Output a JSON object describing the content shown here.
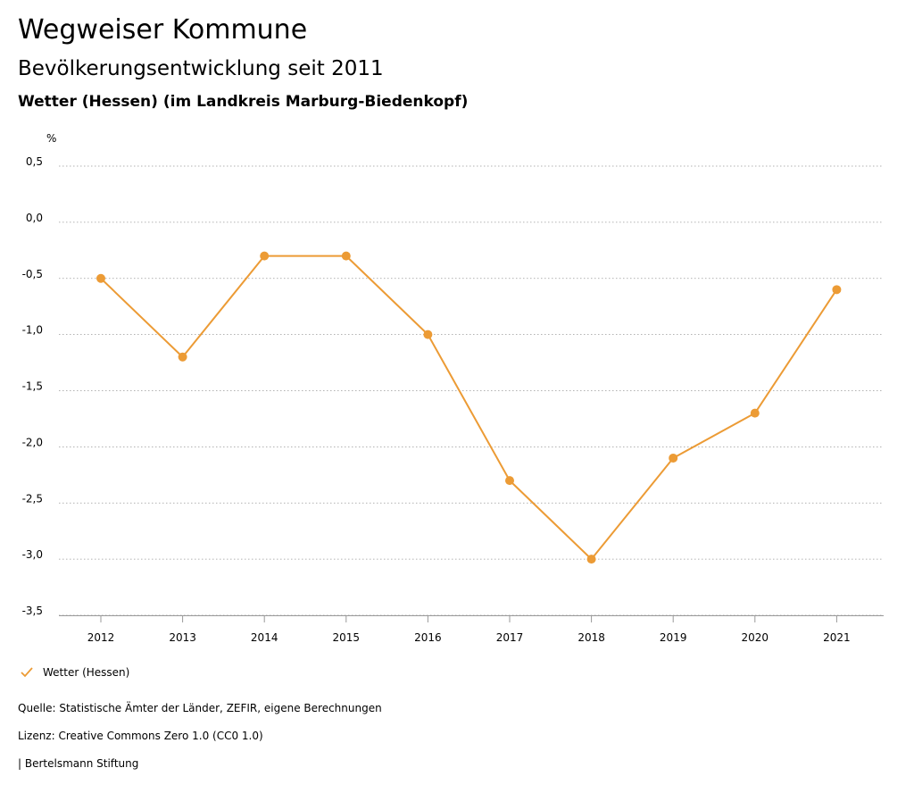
{
  "header": {
    "title": "Wegweiser Kommune",
    "subtitle": "Bevölkerungsentwicklung seit 2011",
    "location": "Wetter (Hessen) (im Landkreis Marburg-Biedenkopf)"
  },
  "chart_data": {
    "type": "line",
    "ylabel": "%",
    "ylim": [
      -3.5,
      0.5
    ],
    "yticks": [
      0.5,
      0.0,
      -0.5,
      -1.0,
      -1.5,
      -2.0,
      -2.5,
      -3.0,
      -3.5
    ],
    "ytick_labels": [
      "0,5",
      "0,0",
      "-0,5",
      "-1,0",
      "-1,5",
      "-2,0",
      "-2,5",
      "-3,0",
      "-3,5"
    ],
    "categories": [
      "2012",
      "2013",
      "2014",
      "2015",
      "2016",
      "2017",
      "2018",
      "2019",
      "2020",
      "2021"
    ],
    "series": [
      {
        "name": "Wetter (Hessen)",
        "color": "#ec9b35",
        "values": [
          -0.5,
          -1.2,
          -0.3,
          -0.3,
          -1.0,
          -2.3,
          -3.0,
          -2.1,
          -1.7,
          -0.6
        ]
      }
    ],
    "grid": true,
    "legend": "bottom-left"
  },
  "footer": {
    "source": "Quelle: Statistische Ämter der Länder, ZEFIR, eigene Berechnungen",
    "license": "Lizenz: Creative Commons Zero 1.0 (CC0 1.0)",
    "publisher": "| Bertelsmann Stiftung"
  }
}
